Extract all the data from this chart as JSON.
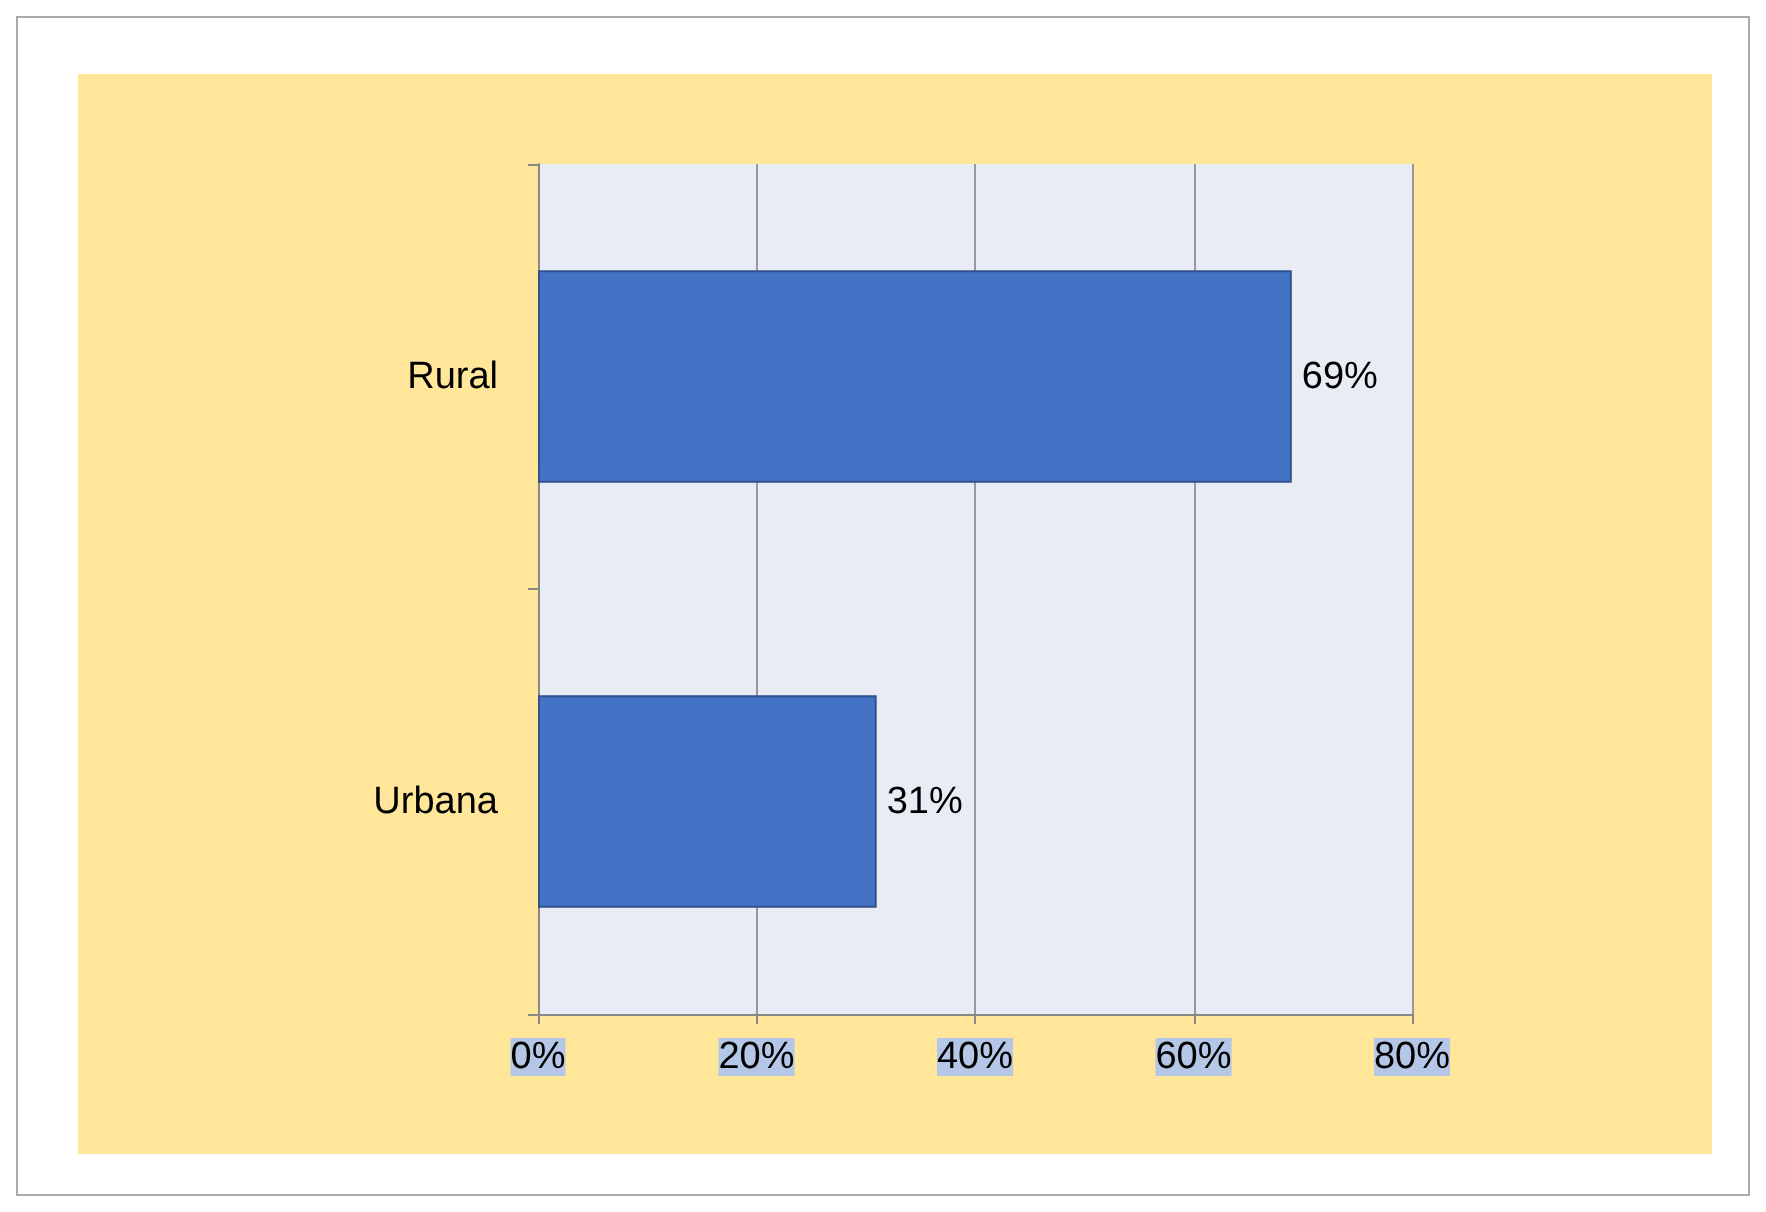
{
  "chart_data": {
    "type": "bar",
    "orientation": "horizontal",
    "categories": [
      "Rural",
      "Urbana"
    ],
    "values": [
      69,
      31
    ],
    "color": "#4472c4",
    "value_labels": [
      "69%",
      "31%"
    ],
    "xlim": [
      0,
      80
    ],
    "xticks": [
      {
        "value": 0,
        "label": "0%"
      },
      {
        "value": 20,
        "label": "20%"
      },
      {
        "value": 40,
        "label": "40%"
      },
      {
        "value": 60,
        "label": "60%"
      },
      {
        "value": 80,
        "label": "80%"
      }
    ],
    "grid": "x"
  }
}
